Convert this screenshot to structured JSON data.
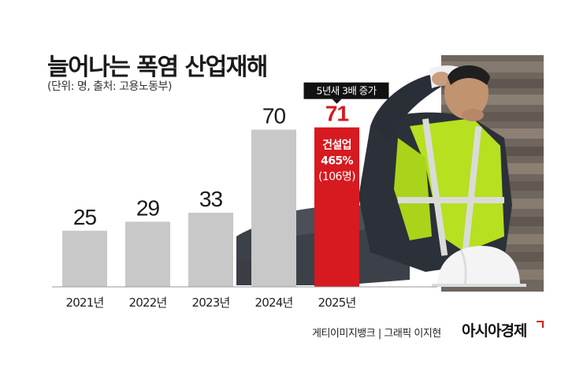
{
  "header": {
    "title": "늘어나는 폭염 산업재해",
    "subtitle": "(단위: 명, 출처: 고용노동부)"
  },
  "chart_data": {
    "type": "bar",
    "categories": [
      "2021년",
      "2022년",
      "2023년",
      "2024년",
      "2025년"
    ],
    "values": [
      25,
      29,
      33,
      70,
      71
    ],
    "ylim": [
      0,
      100
    ],
    "bar_colors": [
      "#c8c8c8",
      "#c8c8c8",
      "#c8c8c8",
      "#c8c8c8",
      "#d71920"
    ],
    "value_label_colors": [
      "#1a1a1a",
      "#1a1a1a",
      "#1a1a1a",
      "#1a1a1a",
      "#d71920"
    ],
    "callout": "5년새 3배 증가",
    "highlight_annotation": {
      "line1": "건설업",
      "line2": "465%",
      "line3": "(106명)"
    }
  },
  "footer": {
    "credit": "게티이미지뱅크 | 그래픽 이지현",
    "brand": "아시아경제"
  },
  "colors": {
    "accent": "#d71920",
    "bar_gray": "#c8c8c8",
    "callout_bg": "#111111"
  },
  "photo": {
    "alt_icon": "heat-exhausted-worker-photo"
  }
}
